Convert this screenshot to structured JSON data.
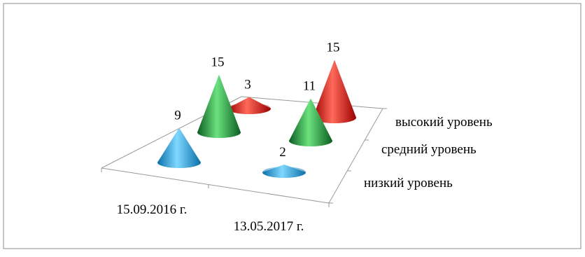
{
  "chart_data": {
    "type": "bar",
    "style": "3d-cone",
    "categories": [
      "15.09.2016 г.",
      "13.05.2017 г."
    ],
    "series": [
      {
        "name": "низкий уровень",
        "values": [
          9,
          2
        ],
        "color": "#1AA6E0"
      },
      {
        "name": "средний уровень",
        "values": [
          15,
          11
        ],
        "color": "#1E9A3C"
      },
      {
        "name": "высокий уровень",
        "values": [
          3,
          15
        ],
        "color": "#E01010"
      }
    ],
    "data_labels": true,
    "gridlines": false
  }
}
